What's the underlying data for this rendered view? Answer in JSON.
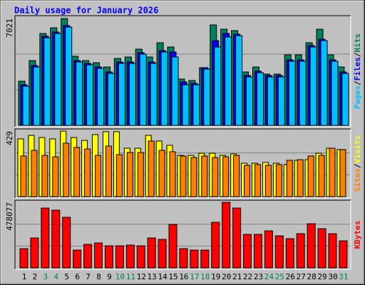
{
  "chart_data": [
    {
      "type": "bar",
      "title": "Daily usage for January 2026",
      "ylim": [
        0,
        7021
      ],
      "yticks": [
        7021
      ],
      "series": [
        {
          "name": "Hits",
          "color": "#00805C",
          "values": [
            2902,
            4260,
            6038,
            6413,
            7021,
            4541,
            4260,
            4119,
            3838,
            4400,
            4494,
            5009,
            4494,
            5430,
            5149,
            3043,
            2949,
            3792,
            6600,
            6319,
            6226,
            3511,
            3838,
            3370,
            3370,
            4634,
            4634,
            5430,
            6319,
            4634,
            3838
          ]
        },
        {
          "name": "Files",
          "color": "#0000FF",
          "values": [
            2669,
            3932,
            5852,
            6132,
            6554,
            4260,
            4073,
            3839,
            3511,
            4166,
            4166,
            4775,
            4166,
            4915,
            4821,
            2855,
            2762,
            3792,
            5570,
            6038,
            5992,
            3277,
            3558,
            3277,
            3277,
            4307,
            4307,
            5243,
            5664,
            4307,
            3511
          ]
        },
        {
          "name": "Pages",
          "color": "#00C0FF",
          "values": [
            2575,
            3838,
            5758,
            6038,
            6460,
            4166,
            3979,
            3745,
            3417,
            4072,
            4072,
            4681,
            4072,
            4821,
            4494,
            2668,
            2668,
            3698,
            5149,
            5804,
            5898,
            3183,
            3464,
            3183,
            3183,
            4213,
            4213,
            5149,
            5570,
            4213,
            3417
          ]
        }
      ]
    },
    {
      "type": "bar",
      "ylim": [
        0,
        429
      ],
      "yticks": [
        429
      ],
      "series": [
        {
          "name": "Visits",
          "color": "#FFFF00",
          "values": [
            378,
            401,
            387,
            378,
            429,
            387,
            368,
            406,
            425,
            425,
            317,
            317,
            401,
            364,
            336,
            270,
            270,
            284,
            284,
            270,
            280,
            219,
            219,
            224,
            219,
            210,
            238,
            242,
            284,
            317,
            308
          ]
        },
        {
          "name": "Sites",
          "color": "#FF8000",
          "values": [
            266,
            303,
            270,
            261,
            350,
            322,
            312,
            270,
            331,
            275,
            289,
            289,
            364,
            303,
            294,
            266,
            256,
            266,
            256,
            261,
            270,
            205,
            210,
            205,
            210,
            238,
            242,
            266,
            270,
            317,
            308
          ]
        }
      ]
    },
    {
      "type": "bar",
      "ylim": [
        0,
        478077
      ],
      "yticks": [
        478077
      ],
      "categories": [
        "1",
        "2",
        "3",
        "4",
        "5",
        "6",
        "7",
        "8",
        "9",
        "10",
        "11",
        "12",
        "13",
        "14",
        "15",
        "16",
        "17",
        "18",
        "19",
        "20",
        "21",
        "22",
        "23",
        "24",
        "25",
        "26",
        "27",
        "28",
        "29",
        "30",
        "31"
      ],
      "category_colors": [
        "#000000",
        "#000000",
        "#00805C",
        "#00805C",
        "#000000",
        "#000000",
        "#000000",
        "#000000",
        "#000000",
        "#00805C",
        "#00805C",
        "#000000",
        "#000000",
        "#000000",
        "#000000",
        "#000000",
        "#00805C",
        "#00805C",
        "#000000",
        "#000000",
        "#000000",
        "#000000",
        "#000000",
        "#00805C",
        "#00805C",
        "#000000",
        "#000000",
        "#000000",
        "#000000",
        "#000000",
        "#00805C"
      ],
      "series": [
        {
          "name": "KBytes",
          "color": "#FF0000",
          "values": [
            140306,
            218253,
            436506,
            420917,
            368952,
            129913,
            171485,
            181878,
            161092,
            161092,
            166288,
            161092,
            218253,
            207860,
            316987,
            140306,
            129913,
            129913,
            332576,
            478077,
            436506,
            244236,
            244236,
            270218,
            233843,
            213057,
            249432,
            322183,
            285808,
            249432,
            197467
          ]
        }
      ]
    }
  ]
}
